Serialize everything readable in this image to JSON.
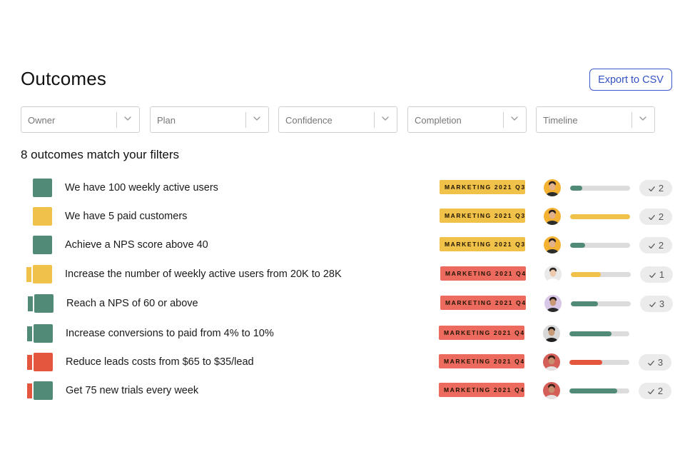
{
  "page": {
    "title": "Outcomes",
    "export_label": "Export to CSV"
  },
  "filters": [
    {
      "label": "Owner"
    },
    {
      "label": "Plan"
    },
    {
      "label": "Confidence"
    },
    {
      "label": "Completion"
    },
    {
      "label": "Timeline"
    }
  ],
  "summary": {
    "match_text": "8 outcomes match your filters"
  },
  "colors": {
    "green": "#518a76",
    "yellow": "#f1c24a",
    "red": "#e4563e",
    "tag_yellow": "#f1c24a",
    "tag_red": "#ec6a5e",
    "track": "#dcdcdc"
  },
  "outcomes": [
    {
      "title": "We have 100 weekly active users",
      "tag": "MARKETING 2021 Q3",
      "tag_color": "yellow",
      "status": "green",
      "prev_status": null,
      "avatar": "avatar-man-1",
      "progress": 0.2,
      "progress_color": "green",
      "checkins": "2"
    },
    {
      "title": "We have 5 paid customers",
      "tag": "MARKETING 2021 Q3",
      "tag_color": "yellow",
      "status": "yellow",
      "prev_status": null,
      "avatar": "avatar-man-1",
      "progress": 1.0,
      "progress_color": "yellow",
      "checkins": "2"
    },
    {
      "title": "Achieve a NPS score above 40",
      "tag": "MARKETING 2021 Q3",
      "tag_color": "yellow",
      "status": "green",
      "prev_status": null,
      "avatar": "avatar-man-1",
      "progress": 0.25,
      "progress_color": "green",
      "checkins": "2"
    },
    {
      "title": "Increase the number of weekly active users from 20K to 28K",
      "tag": "MARKETING 2021 Q4",
      "tag_color": "red",
      "status": "yellow",
      "prev_status": "yellow",
      "avatar": "avatar-man-2",
      "progress": 0.5,
      "progress_color": "yellow",
      "checkins": "1"
    },
    {
      "title": "Reach a NPS of 60 or above",
      "tag": "MARKETING 2021 Q4",
      "tag_color": "red",
      "status": "green",
      "prev_status": "green",
      "avatar": "avatar-woman-1",
      "progress": 0.45,
      "progress_color": "green",
      "checkins": "3"
    },
    {
      "title": "Increase conversions to paid from 4% to 10%",
      "tag": "MARKETING 2021 Q4",
      "tag_color": "red",
      "status": "green",
      "prev_status": "green",
      "avatar": "avatar-man-3",
      "progress": 0.7,
      "progress_color": "green",
      "checkins": ""
    },
    {
      "title": "Reduce leads costs from $65 to $35/lead",
      "tag": "MARKETING 2021 Q4",
      "tag_color": "red",
      "status": "red",
      "prev_status": "red",
      "avatar": "avatar-woman-2",
      "progress": 0.55,
      "progress_color": "red",
      "checkins": "3"
    },
    {
      "title": "Get 75 new trials every week",
      "tag": "MARKETING 2021 Q4",
      "tag_color": "red",
      "status": "green",
      "prev_status": "red",
      "avatar": "avatar-woman-2",
      "progress": 0.8,
      "progress_color": "green",
      "checkins": "2"
    }
  ]
}
